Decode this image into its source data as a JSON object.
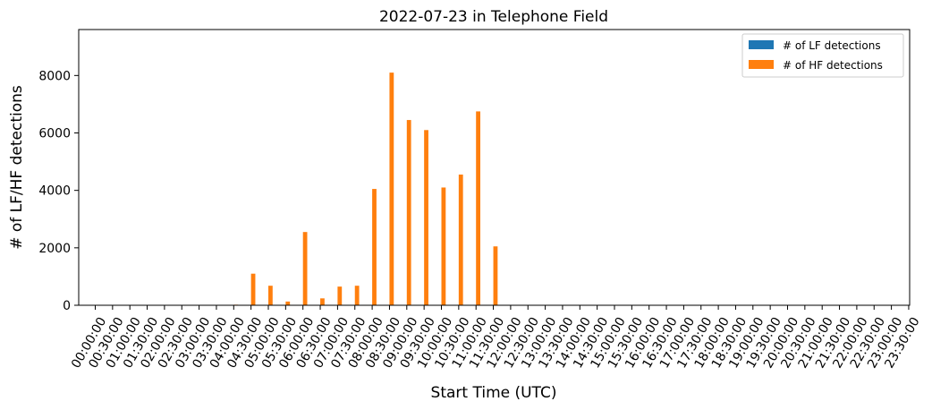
{
  "chart_data": {
    "type": "bar",
    "title": "2022-07-23 in Telephone Field",
    "xlabel": "Start Time (UTC)",
    "ylabel": "# of LF/HF detections",
    "ylim": [
      0,
      9600
    ],
    "yticks": [
      0,
      2000,
      4000,
      6000,
      8000
    ],
    "grid": false,
    "legend_position": "top-right",
    "categories": [
      "00:00:00",
      "00:30:00",
      "01:00:00",
      "01:30:00",
      "02:00:00",
      "02:30:00",
      "03:00:00",
      "03:30:00",
      "04:00:00",
      "04:30:00",
      "05:00:00",
      "05:30:00",
      "06:00:00",
      "06:30:00",
      "07:00:00",
      "07:30:00",
      "08:00:00",
      "08:30:00",
      "09:00:00",
      "09:30:00",
      "10:00:00",
      "10:30:00",
      "11:00:00",
      "11:30:00",
      "12:00:00",
      "12:30:00",
      "13:00:00",
      "13:30:00",
      "14:00:00",
      "14:30:00",
      "15:00:00",
      "15:30:00",
      "16:00:00",
      "16:30:00",
      "17:00:00",
      "17:30:00",
      "18:00:00",
      "18:30:00",
      "19:00:00",
      "19:30:00",
      "20:00:00",
      "20:30:00",
      "21:00:00",
      "21:30:00",
      "22:00:00",
      "22:30:00",
      "23:00:00",
      "23:30:00"
    ],
    "series": [
      {
        "name": "# of LF detections",
        "color": "#1f77b4",
        "values": [
          0,
          0,
          0,
          0,
          0,
          0,
          0,
          0,
          0,
          0,
          0,
          0,
          0,
          0,
          0,
          0,
          0,
          0,
          0,
          0,
          0,
          0,
          0,
          0,
          0,
          0,
          0,
          0,
          0,
          0,
          0,
          0,
          0,
          0,
          0,
          0,
          0,
          0,
          0,
          0,
          0,
          0,
          0,
          0,
          0,
          0,
          0,
          0
        ]
      },
      {
        "name": "# of HF detections",
        "color": "#ff7f0e",
        "values": [
          0,
          0,
          0,
          0,
          0,
          0,
          0,
          0,
          20,
          1100,
          680,
          130,
          2550,
          240,
          650,
          680,
          4050,
          8100,
          6450,
          6100,
          4100,
          4550,
          6750,
          2050,
          0,
          0,
          0,
          0,
          0,
          0,
          0,
          0,
          0,
          0,
          0,
          0,
          0,
          0,
          0,
          0,
          0,
          0,
          0,
          0,
          0,
          0,
          0,
          0
        ]
      }
    ]
  }
}
